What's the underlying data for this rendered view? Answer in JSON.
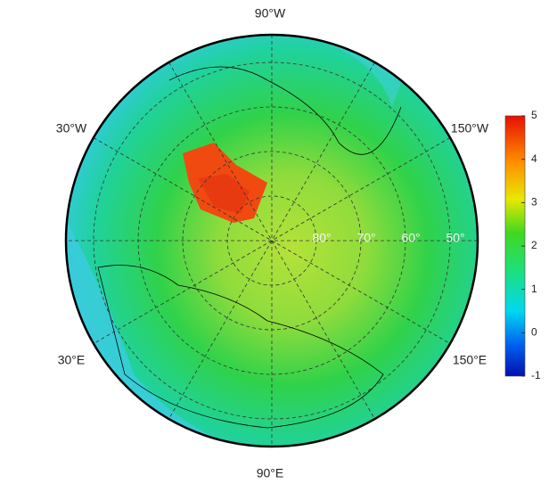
{
  "map": {
    "lon_labels": {
      "top": "90°W",
      "top_right": "150°W",
      "bottom_right": "150°E",
      "bottom": "90°E",
      "bottom_left": "30°E",
      "top_left": "30°W"
    },
    "lat_labels": [
      "80°",
      "70°",
      "60°",
      "50°"
    ],
    "colorbar": {
      "lim": [
        -1,
        5
      ],
      "ticks": [
        -1,
        0,
        1,
        2,
        3,
        4,
        5
      ]
    }
  }
}
